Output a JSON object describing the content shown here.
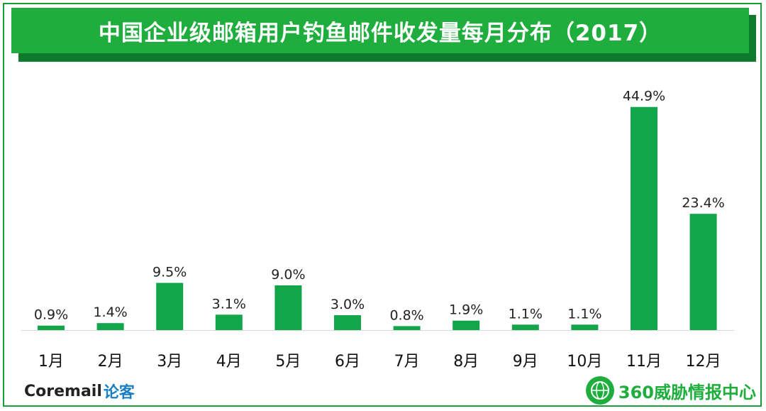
{
  "title": "中国企业级邮箱用户钓鱼邮件收发量每月分布（2017）",
  "chart_data": {
    "type": "bar",
    "title": "中国企业级邮箱用户钓鱼邮件收发量每月分布（2017）",
    "categories": [
      "1月",
      "2月",
      "3月",
      "4月",
      "5月",
      "6月",
      "7月",
      "8月",
      "9月",
      "10月",
      "11月",
      "12月"
    ],
    "values": [
      0.9,
      1.4,
      9.5,
      3.1,
      9.0,
      3.0,
      0.8,
      1.9,
      1.1,
      1.1,
      44.9,
      23.4
    ],
    "value_labels": [
      "0.9%",
      "1.4%",
      "9.5%",
      "3.1%",
      "9.0%",
      "3.0%",
      "0.8%",
      "1.9%",
      "1.1%",
      "1.1%",
      "44.9%",
      "23.4%"
    ],
    "ylim": [
      0,
      45
    ],
    "grid": false,
    "legend": "none",
    "bar_color": "#12a54a"
  },
  "footer": {
    "left_brand": "Coremail",
    "left_sub": "论客",
    "right_org": "360威胁情报中心"
  },
  "colors": {
    "title_bg": "#1fae3e",
    "title_shadow": "#0e7a2b",
    "frame": "#1a9c3c"
  }
}
